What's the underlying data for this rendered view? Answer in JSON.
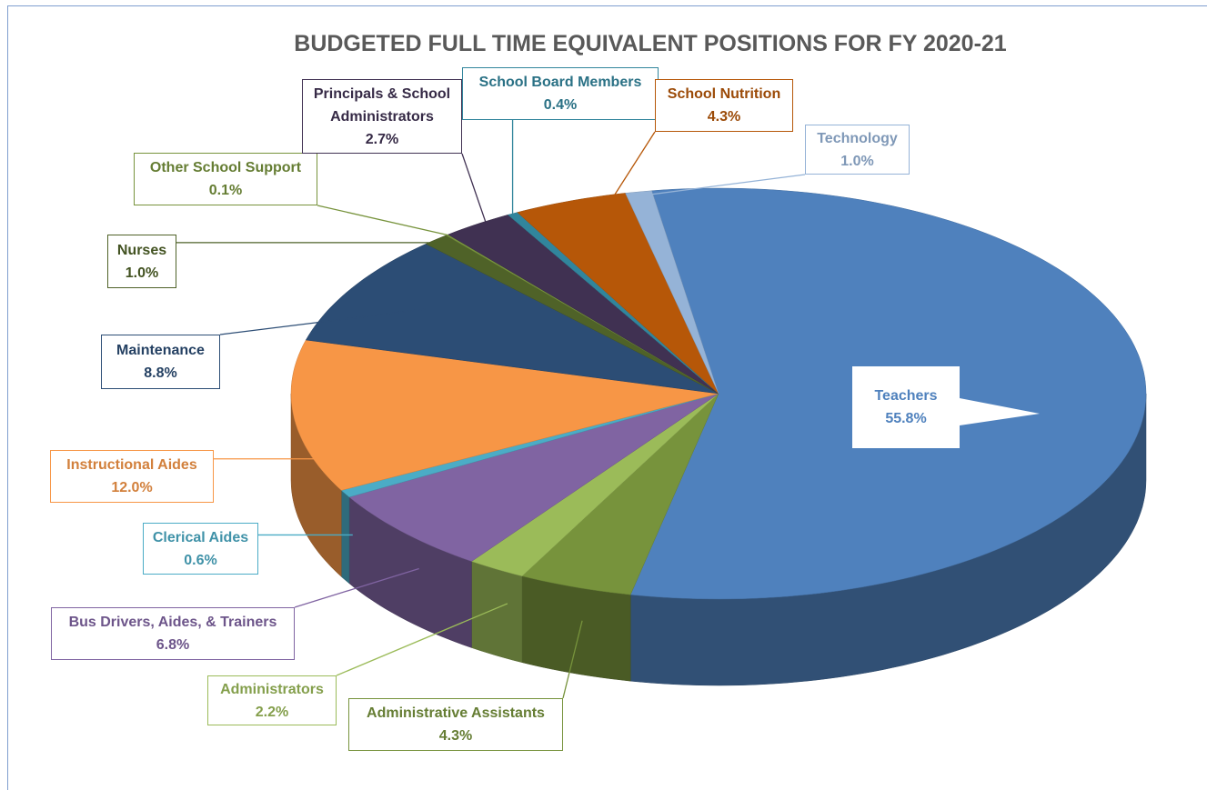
{
  "chart_data": {
    "type": "pie3d",
    "title": "BUDGETED FULL TIME EQUIVALENT POSITIONS FOR FY 2020-21",
    "categories": [
      "Teachers",
      "Administrative Assistants",
      "Administrators",
      "Bus Drivers, Aides, & Trainers",
      "Clerical Aides",
      "Instructional Aides",
      "Maintenance",
      "Nurses",
      "Other School Support",
      "Principals & School Administrators",
      "School Board Members",
      "School Nutrition",
      "Technology"
    ],
    "values": [
      55.8,
      4.3,
      2.2,
      6.8,
      0.6,
      12.0,
      8.8,
      1.0,
      0.1,
      2.7,
      0.4,
      4.3,
      1.0
    ],
    "value_labels": [
      "55.8%",
      "4.3%",
      "2.2%",
      "6.8%",
      "0.6%",
      "12.0%",
      "8.8%",
      "1.0%",
      "0.1%",
      "2.7%",
      "0.4%",
      "4.3%",
      "1.0%"
    ],
    "colors": [
      "#4f81bd",
      "#77933c",
      "#9bbb59",
      "#8064a2",
      "#4bacc6",
      "#f79646",
      "#2c4d75",
      "#4f6228",
      "#77933c",
      "#403152",
      "#31859c",
      "#b65708",
      "#95b3d7"
    ]
  }
}
